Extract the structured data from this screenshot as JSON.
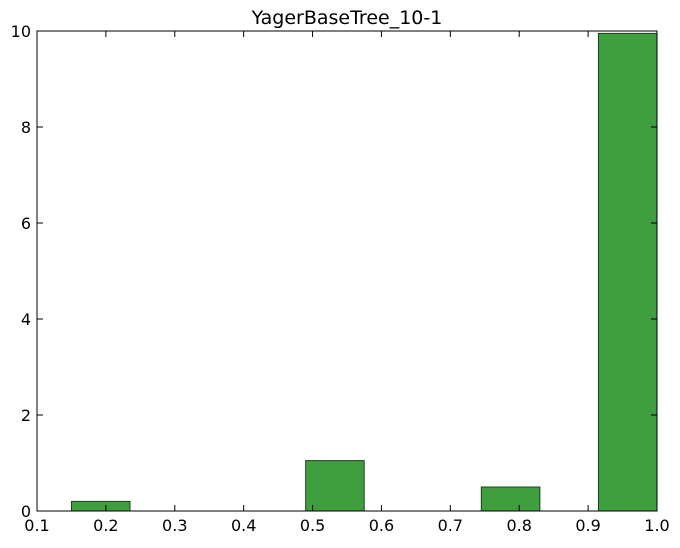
{
  "chart_data": {
    "type": "bar",
    "title": "YagerBaseTree_10-1",
    "xlabel": "",
    "ylabel": "",
    "xlim": [
      0.1,
      1.0
    ],
    "ylim": [
      0,
      10
    ],
    "xticks": [
      "0.1",
      "0.2",
      "0.3",
      "0.4",
      "0.5",
      "0.6",
      "0.7",
      "0.8",
      "0.9",
      "1.0"
    ],
    "yticks": [
      "0",
      "2",
      "4",
      "6",
      "8",
      "10"
    ],
    "grid": false,
    "legend": "none",
    "bar_color": "#3f9f3f",
    "bar_edge_color": "#1f3f1f",
    "bins": [
      {
        "x0": 0.15,
        "x1": 0.235,
        "value": 0.2
      },
      {
        "x0": 0.235,
        "x1": 0.32,
        "value": 0
      },
      {
        "x0": 0.32,
        "x1": 0.405,
        "value": 0
      },
      {
        "x0": 0.405,
        "x1": 0.49,
        "value": 0
      },
      {
        "x0": 0.49,
        "x1": 0.575,
        "value": 1.05
      },
      {
        "x0": 0.575,
        "x1": 0.66,
        "value": 0
      },
      {
        "x0": 0.66,
        "x1": 0.745,
        "value": 0
      },
      {
        "x0": 0.745,
        "x1": 0.83,
        "value": 0.5
      },
      {
        "x0": 0.83,
        "x1": 0.915,
        "value": 0
      },
      {
        "x0": 0.915,
        "x1": 1.0,
        "value": 9.95
      }
    ]
  }
}
